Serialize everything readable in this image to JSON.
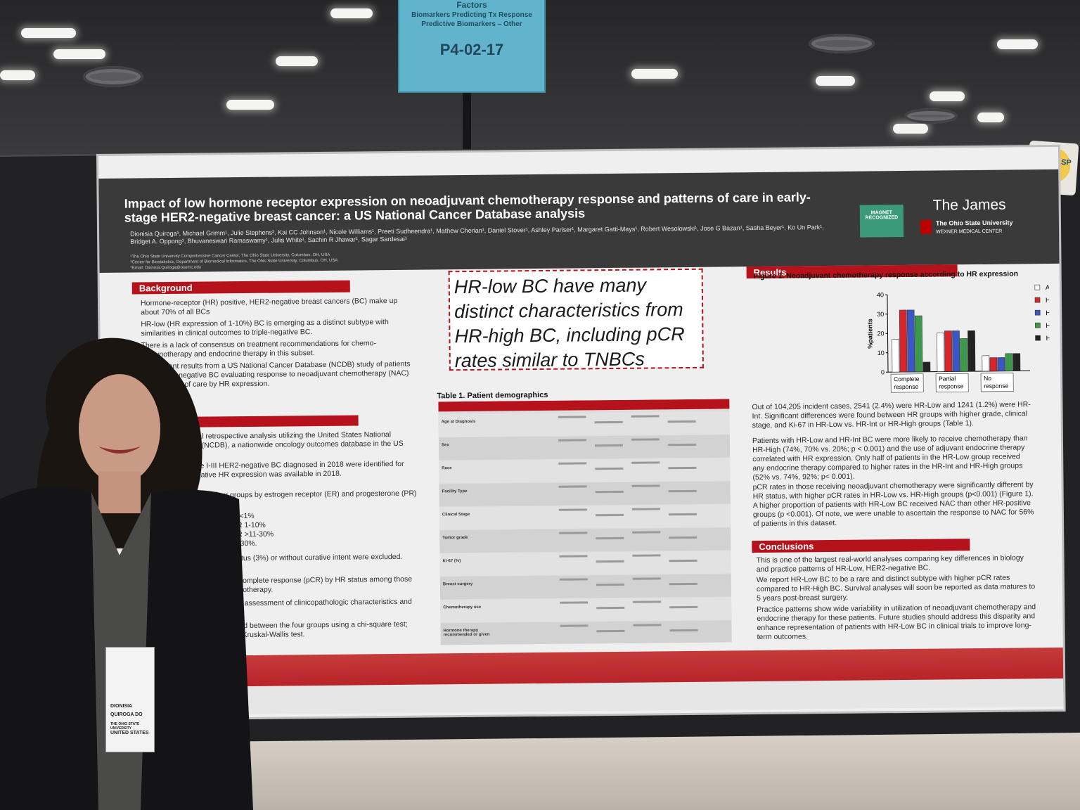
{
  "session_sign": {
    "line1": "Factors",
    "line2": "Biomarkers Predicting Tx Response",
    "line3": "Predictive Biomarkers – Other",
    "code": "P4-02-17"
  },
  "poster": {
    "title": "Impact of low hormone receptor expression on neoadjuvant chemotherapy response and patterns of care in early-stage HER2-negative breast cancer: a US National Cancer Database analysis",
    "authors": "Dionisia Quiroga¹, Michael Grimm¹, Julie Stephens², Kai CC Johnson¹, Nicole Williams¹, Preeti Sudheendra¹, Mathew Cherian¹, Daniel Stover¹, Ashley Pariser¹, Margaret Gatti-Mays¹, Robert Wesolowski¹, Jose G Bazan¹, Sasha Beyer¹, Ko Un Park¹, Bridget A. Oppong¹, Bhuvaneswari Ramaswamy¹, Julia White¹, Sachin R Jhawar¹, Sagar Sardesai¹",
    "affiliations": [
      "¹The Ohio State University Comprehensive Cancer Center, The Ohio State University, Columbus, OH, USA",
      "²Center for Biostatistics, Department of Biomedical Informatics, The Ohio State University, Columbus, OH, USA",
      "*Email: Dionisia.Quiroga@osumc.edu"
    ],
    "logos": {
      "magnet": "MAGNET RECOGNIZED",
      "james": "The James",
      "osu": "The Ohio State University",
      "wexner": "WEXNER MEDICAL CENTER"
    },
    "background": {
      "heading": "Background",
      "bullets": [
        "Hormone-receptor (HR) positive, HER2-negative breast cancers (BC) make up about 70% of all BCs",
        "HR-low (HR expression of 1-10%) BC is emerging as a distinct subtype with similarities in clinical outcomes to triple-negative BC.",
        "There is a lack of consensus on treatment recommendations for chemo-immunotherapy and endocrine therapy in this subset.",
        "We present results from a US National Cancer Database (NCDB) study of patients with HER2-negative BC evaluating response to neoadjuvant chemotherapy (NAC) and patterns of care by HR expression."
      ]
    },
    "methods": {
      "lines": [
        "A multi-institutional retrospective analysis utilizing the United States National Cancer Database (NCDB), a nationwide oncology outcomes database in the US",
        "Patients with stage I-III HER2-negative BC diagnosed in 2018 were identified for this study. Quantitative HR expression was available in 2018.",
        "Patients stratified into four groups by estrogen receptor (ER) and progesterone (PR) expression:",
        "ER and PR <1%",
        "% and/or PR 1-10%",
        "% and/or PR >11-30%",
        "and/or PR >30%.",
        "Patients with unknown HR status (3%) or without curative intent were excluded.",
        "Primary endpoint: pathologic complete response (pCR) by HR status among those undergoing neoadjuvant chemotherapy.",
        "Secondary endpoints included assessment of clinicopathologic characteristics and care patterns.",
        "Categorical variables compared between the four groups using a chi-square test; continuous compared using a Kruskal-Wallis test."
      ]
    },
    "callout": "HR-low BC have many distinct characteristics from HR-high BC, including pCR rates similar to TNBCs",
    "table": {
      "title": "Table 1. Patient demographics",
      "row_labels": [
        "Age at Diagnosis",
        "Sex",
        "Race",
        "Facility Type",
        "Clinical Stage",
        "Tumor grade",
        "Ki-67 (%)",
        "Breast surgery",
        "Chemotherapy use",
        "Hormone therapy recommended or given"
      ]
    },
    "results": {
      "heading": "Results",
      "figure_title": "Figure 1. Neoadjuvant chemotherapy response according to HR expression",
      "bullets": [
        "Out of 104,205 incident cases, 2541 (2.4%) were HR-Low and 1241 (1.2%) were HR-Int. Significant differences were found between HR groups with higher grade, clinical stage, and Ki-67 in HR-Low vs. HR-Int or HR-High groups (Table 1).",
        "Patients with HR-Low and HR-Int BC were more likely to receive chemotherapy than HR-High (74%, 70% vs. 20%; p < 0.001) and the use of adjuvant endocrine therapy correlated with HR expression. Only half of patients in the HR-Low group received any endocrine therapy compared to higher rates in the HR-Int and HR-High groups (52% vs. 74%, 92%; p< 0.001).",
        "pCR rates in those receiving neoadjuvant chemotherapy were significantly different by HR status, with higher pCR rates in HR-Low vs. HR-High groups (p<0.001) (Figure 1). A higher proportion of patients with HR-Low BC received NAC than other HR-positive groups (p <0.001). Of note, we were unable to ascertain the response to NAC for 56% of patients in this dataset."
      ]
    },
    "conclusions": {
      "heading": "Conclusions",
      "bullets": [
        "This is one of the largest real-world analyses comparing key differences in biology and practice patterns of HR-Low, HER2-negative BC.",
        "We report HR-Low BC to be a rare and distinct subtype with higher pCR rates compared to HR-High BC. Survival analyses will soon be reported as data matures to 5 years post-breast surgery.",
        "Practice patterns show wide variability in utilization of neoadjuvant chemotherapy and endocrine therapy for these patients. Future studies should address this disparity and enhance representation of patients with HR-Low BC in clinical trials to improve long-term outcomes."
      ]
    }
  },
  "chart_data": {
    "type": "bar",
    "title": "Figure 1. Neoadjuvant chemotherapy response according to HR expression",
    "xlabel": "",
    "ylabel": "%patients",
    "ylim": [
      0,
      40
    ],
    "yticks": [
      0,
      10,
      20,
      30,
      40
    ],
    "categories": [
      "Complete response",
      "Partial response",
      "No response"
    ],
    "series": [
      {
        "name": "All patients",
        "color": "#ffffff",
        "values": [
          17,
          20,
          8
        ]
      },
      {
        "name": "HR-Neg",
        "color": "#d7262b",
        "values": [
          32,
          21,
          7
        ]
      },
      {
        "name": "HR-Low",
        "color": "#3a57c4",
        "values": [
          32,
          21,
          7
        ]
      },
      {
        "name": "HR-Int",
        "color": "#3a9a4a",
        "values": [
          29,
          17,
          9
        ]
      },
      {
        "name": "HR-High",
        "color": "#222222",
        "values": [
          5,
          21,
          9
        ]
      }
    ],
    "legend": "right",
    "grid": false
  },
  "badge": {
    "name_line1": "DIONISIA",
    "name_line2": "QUIROGA DO",
    "affiliation": "THE OHIO STATE UNIVERSITY",
    "country": "UNITED STATES"
  },
  "sticker": {
    "text": "GRASP"
  }
}
